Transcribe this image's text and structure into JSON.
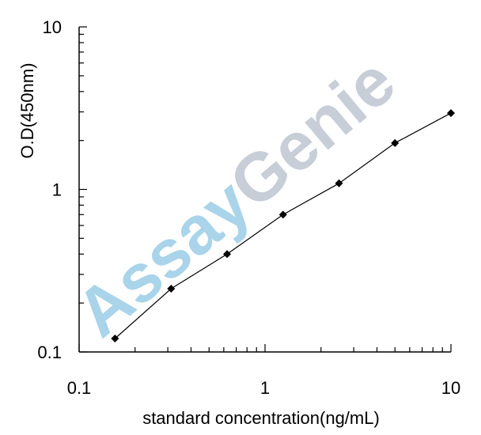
{
  "chart_data": {
    "type": "line",
    "title": "",
    "xlabel": "standard concentration(ng/mL)",
    "ylabel": "O.D(450nm)",
    "xscale": "log",
    "yscale": "log",
    "xlim": [
      0.1,
      10
    ],
    "ylim": [
      0.1,
      10
    ],
    "x_ticks": [
      0.1,
      1,
      10
    ],
    "x_tick_labels": [
      "0.1",
      "1",
      "10"
    ],
    "y_ticks": [
      0.1,
      1,
      10
    ],
    "y_tick_labels": [
      "0.1",
      "1",
      "10"
    ],
    "grid": false,
    "legend": "none",
    "series": [
      {
        "x": [
          0.156,
          0.3125,
          0.625,
          1.25,
          2.5,
          5,
          10
        ],
        "y": [
          0.121,
          0.245,
          0.4,
          0.7,
          1.09,
          1.93,
          2.95
        ],
        "color": "#000000",
        "marker": "diamond"
      }
    ],
    "watermark": {
      "part1": "Assay",
      "part2": "Genie",
      "color1": "#a9d4ea",
      "color2": "#c7ced8"
    }
  }
}
